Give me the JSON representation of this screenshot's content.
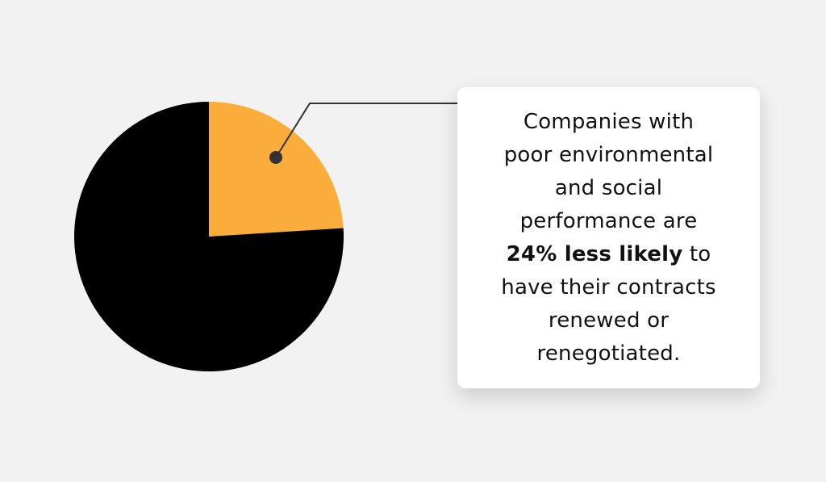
{
  "chart_data": {
    "type": "pie",
    "slices": [
      {
        "value": 24,
        "color": "#fbad3b"
      },
      {
        "value": 76,
        "color": "#000000"
      }
    ],
    "start_angle_deg": -90
  },
  "callout": {
    "line1": "Companies with",
    "line2": "poor environmental",
    "line3": "and social",
    "line4": "performance are",
    "highlight": "24% less likely",
    "line5_rest": " to",
    "line6": "have their contracts",
    "line7": "renewed or",
    "line8": "renegotiated."
  },
  "colors": {
    "background": "#f2f2f2",
    "card": "#ffffff",
    "accent": "#fbad3b",
    "leader": "#333333"
  }
}
